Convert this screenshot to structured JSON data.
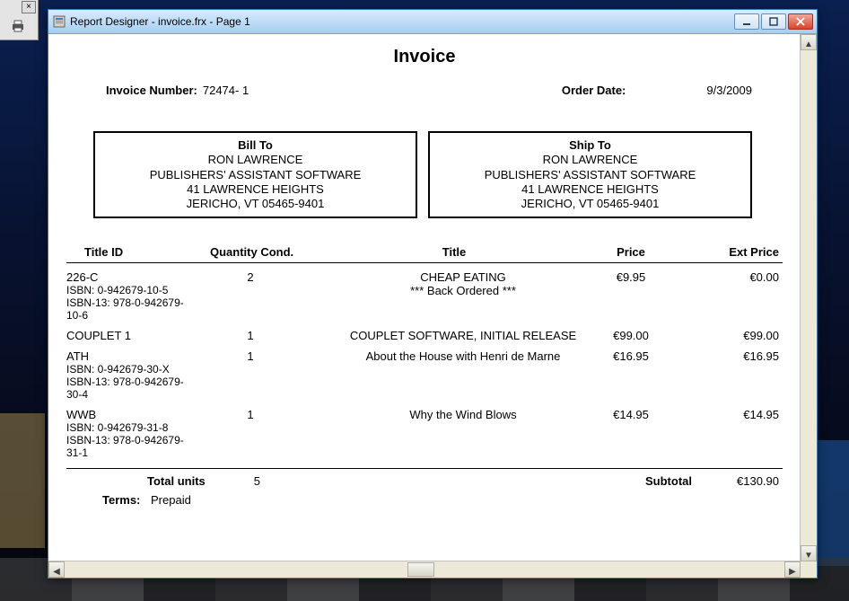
{
  "window": {
    "title": "Report Designer - invoice.frx - Page 1"
  },
  "header": {
    "title": "Invoice",
    "invoice_number_label": "Invoice Number:",
    "invoice_number": "72474- 1",
    "order_date_label": "Order Date:",
    "order_date": "9/3/2009"
  },
  "bill_to": {
    "head": "Bill To",
    "name": "RON LAWRENCE",
    "company": "PUBLISHERS' ASSISTANT SOFTWARE",
    "street": "41 LAWRENCE HEIGHTS",
    "city": "JERICHO, VT 05465-9401"
  },
  "ship_to": {
    "head": "Ship To",
    "name": "RON LAWRENCE",
    "company": "PUBLISHERS' ASSISTANT SOFTWARE",
    "street": "41 LAWRENCE HEIGHTS",
    "city": "JERICHO, VT 05465-9401"
  },
  "columns": {
    "id": "Title ID",
    "qty": "Quantity Cond.",
    "title": "Title",
    "price": "Price",
    "ext": "Ext Price"
  },
  "lines": [
    {
      "id": "226-C",
      "isbn": "ISBN: 0-942679-10-5",
      "isbn13": "ISBN-13: 978-0-942679-10-6",
      "qty": "2",
      "title": "CHEAP EATING",
      "note": "*** Back Ordered ***",
      "price": "€9.95",
      "ext": "€0.00"
    },
    {
      "id": "COUPLET 1",
      "isbn": "",
      "isbn13": "",
      "qty": "1",
      "title": "COUPLET SOFTWARE, INITIAL RELEASE",
      "note": "",
      "price": "€99.00",
      "ext": "€99.00"
    },
    {
      "id": "ATH",
      "isbn": "ISBN: 0-942679-30-X",
      "isbn13": "ISBN-13: 978-0-942679-30-4",
      "qty": "1",
      "title": "About the House with Henri de Marne",
      "note": "",
      "price": "€16.95",
      "ext": "€16.95"
    },
    {
      "id": "WWB",
      "isbn": "ISBN: 0-942679-31-8",
      "isbn13": "ISBN-13: 978-0-942679-31-1",
      "qty": "1",
      "title": "Why the Wind Blows",
      "note": "",
      "price": "€14.95",
      "ext": "€14.95"
    }
  ],
  "footer": {
    "total_units_label": "Total units",
    "total_units": "5",
    "subtotal_label": "Subtotal",
    "subtotal": "€130.90",
    "terms_label": "Terms:",
    "terms": "Prepaid"
  }
}
